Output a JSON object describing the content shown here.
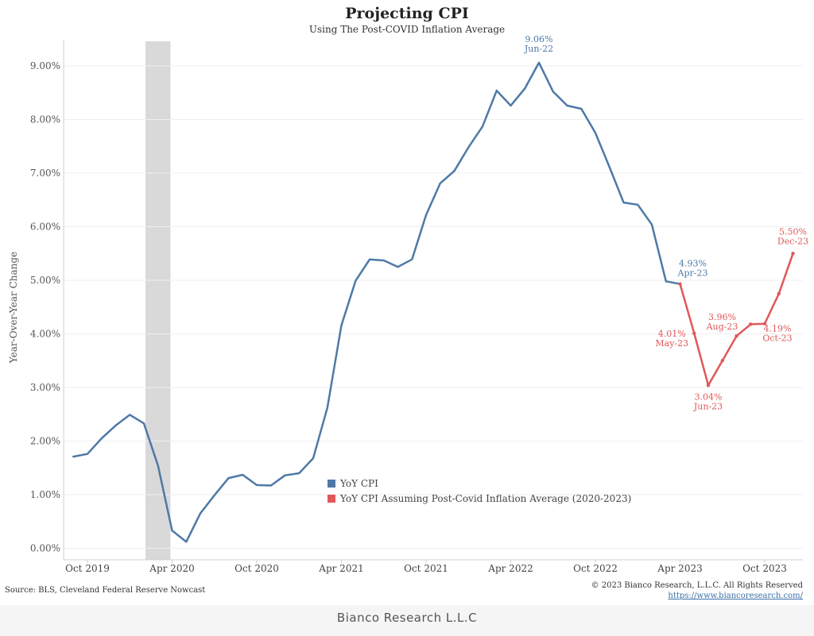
{
  "chart_data": {
    "type": "line",
    "title": "Projecting CPI",
    "subtitle": "Using The Post-COVID Inflation Average",
    "ylabel": "Year-Over-Year Change",
    "xlabel": "",
    "ylim": [
      0,
      9.5
    ],
    "y_ticks": [
      "0.00%",
      "1.00%",
      "2.00%",
      "3.00%",
      "4.00%",
      "5.00%",
      "6.00%",
      "7.00%",
      "8.00%",
      "9.00%"
    ],
    "x_ticks": [
      "Oct 2019",
      "Apr 2020",
      "Oct 2020",
      "Apr 2021",
      "Oct 2021",
      "Apr 2022",
      "Oct 2022",
      "Apr 2023",
      "Oct 2023"
    ],
    "grid": true,
    "shaded_region": [
      "Feb 2020",
      "Apr 2020"
    ],
    "series": [
      {
        "name": "YoY CPI",
        "color": "#4e79a7",
        "x": [
          "Sep 2019",
          "Oct 2019",
          "Nov 2019",
          "Dec 2019",
          "Jan 2020",
          "Feb 2020",
          "Mar 2020",
          "Apr 2020",
          "May 2020",
          "Jun 2020",
          "Jul 2020",
          "Aug 2020",
          "Sep 2020",
          "Oct 2020",
          "Nov 2020",
          "Dec 2020",
          "Jan 2021",
          "Feb 2021",
          "Mar 2021",
          "Apr 2021",
          "May 2021",
          "Jun 2021",
          "Jul 2021",
          "Aug 2021",
          "Sep 2021",
          "Oct 2021",
          "Nov 2021",
          "Dec 2021",
          "Jan 2022",
          "Feb 2022",
          "Mar 2022",
          "Apr 2022",
          "May 2022",
          "Jun 2022",
          "Jul 2022",
          "Aug 2022",
          "Sep 2022",
          "Oct 2022",
          "Nov 2022",
          "Dec 2022",
          "Jan 2023",
          "Feb 2023",
          "Mar 2023",
          "Apr 2023"
        ],
        "values": [
          1.71,
          1.76,
          2.05,
          2.29,
          2.49,
          2.33,
          1.54,
          0.33,
          0.12,
          0.65,
          0.99,
          1.31,
          1.37,
          1.18,
          1.17,
          1.36,
          1.4,
          1.68,
          2.62,
          4.16,
          4.99,
          5.39,
          5.37,
          5.25,
          5.39,
          6.22,
          6.81,
          7.04,
          7.48,
          7.87,
          8.54,
          8.26,
          8.58,
          9.06,
          8.52,
          8.26,
          8.2,
          7.75,
          7.11,
          6.45,
          6.41,
          6.04,
          4.98,
          4.93
        ]
      },
      {
        "name": "YoY CPI Assuming Post-Covid Inflation Average (2020-2023)",
        "color": "#e15759",
        "x": [
          "Apr 2023",
          "May 2023",
          "Jun 2023",
          "Jul 2023",
          "Aug 2023",
          "Sep 2023",
          "Oct 2023",
          "Nov 2023",
          "Dec 2023"
        ],
        "values": [
          4.93,
          4.01,
          3.04,
          3.5,
          3.96,
          4.18,
          4.19,
          4.75,
          5.5
        ]
      }
    ],
    "annotations": [
      {
        "value": "9.06%",
        "date": "Jun-22",
        "series": 0
      },
      {
        "value": "4.93%",
        "date": "Apr-23",
        "series": 0
      },
      {
        "value": "4.01%",
        "date": "May-23",
        "series": 1
      },
      {
        "value": "3.04%",
        "date": "Jun-23",
        "series": 1
      },
      {
        "value": "3.96%",
        "date": "Aug-23",
        "series": 1
      },
      {
        "value": "4.19%",
        "date": "Oct-23",
        "series": 1
      },
      {
        "value": "5.50%",
        "date": "Dec-23",
        "series": 1
      }
    ]
  },
  "legend": {
    "items": [
      {
        "label": "YoY CPI",
        "color": "#4e79a7"
      },
      {
        "label": "YoY CPI Assuming Post-Covid Inflation Average (2020-2023)",
        "color": "#e15759"
      }
    ]
  },
  "footer": {
    "source": "Source: BLS, Cleveland Federal Reserve Nowcast",
    "copyright": "© 2023 Bianco Research, L.L.C. All Rights Reserved",
    "website": "https://www.biancoresearch.com/",
    "brand": "Bianco Research L.L.C"
  }
}
